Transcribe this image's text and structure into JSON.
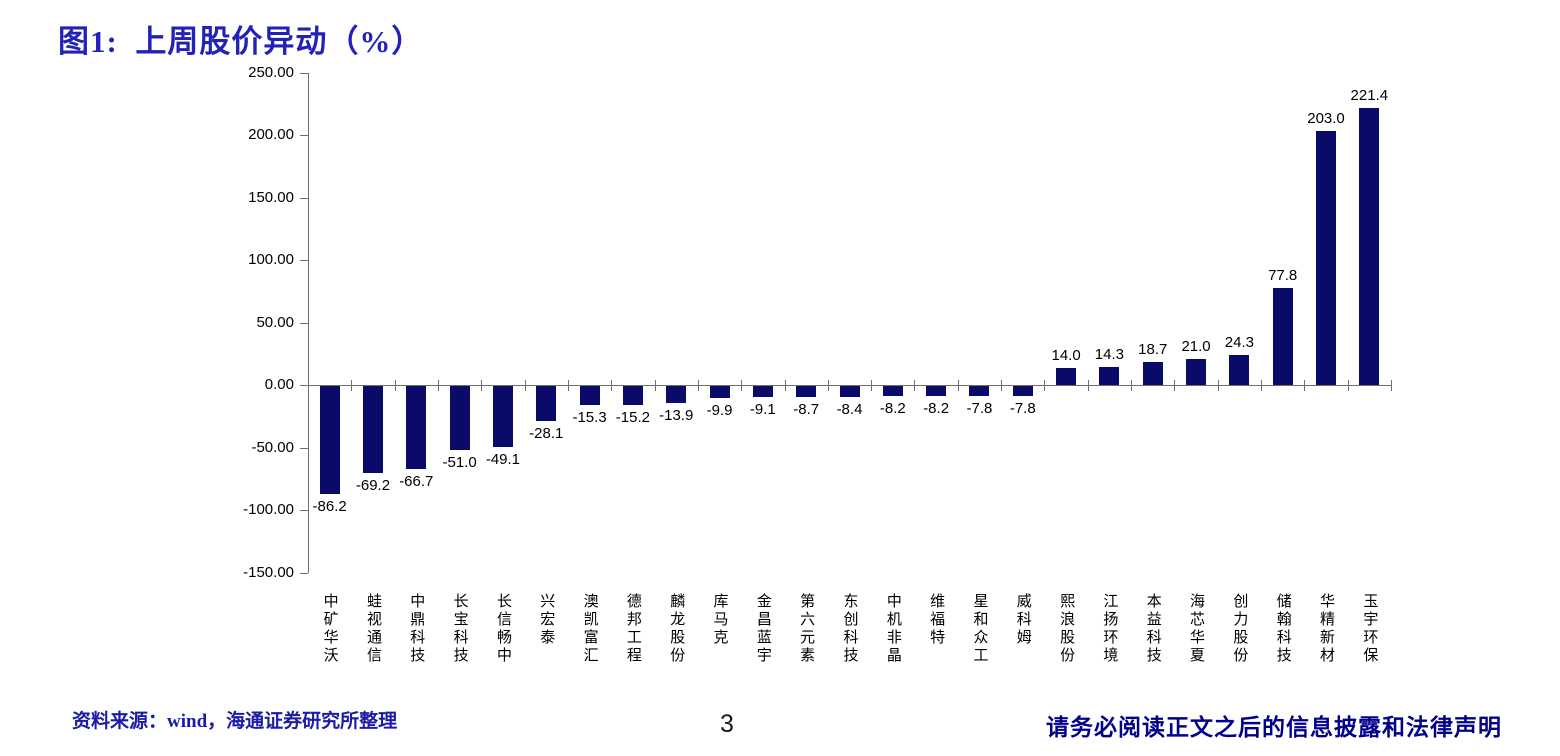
{
  "page": {
    "title": "图1:  上周股价异动（%）",
    "page_number": "3",
    "source_note": "资料来源：wind，海通证券研究所整理",
    "legal_notice": "请务必阅读正文之后的信息披露和法律声明"
  },
  "chart_data": {
    "type": "bar",
    "title": "上周股价异动（%）",
    "categories": [
      "中矿华沃",
      "蛙视通信",
      "中鼎科技",
      "长宝科技",
      "长信畅中",
      "兴宏泰",
      "澳凯富汇",
      "德邦工程",
      "麟龙股份",
      "库马克",
      "金昌蓝宇",
      "第六元素",
      "东创科技",
      "中机非晶",
      "维福特",
      "星和众工",
      "威科姆",
      "熙浪股份",
      "江扬环境",
      "本益科技",
      "海芯华夏",
      "创力股份",
      "储翰科技",
      "华精新材",
      "玉宇环保"
    ],
    "values": [
      -86.2,
      -69.2,
      -66.7,
      -51.0,
      -49.1,
      -28.1,
      -15.3,
      -15.2,
      -13.9,
      -9.9,
      -9.1,
      -8.7,
      -8.4,
      -8.2,
      -8.2,
      -7.8,
      -7.8,
      14.0,
      14.3,
      18.7,
      21.0,
      24.3,
      77.8,
      203.0,
      221.4
    ],
    "value_labels": [
      "-86.2",
      "-69.2",
      "-66.7",
      "-51.0",
      "-49.1",
      "-28.1",
      "-15.3",
      "-15.2",
      "-13.9",
      "-9.9",
      "-9.1",
      "-8.7",
      "-8.4",
      "-8.2",
      "-8.2",
      "-7.8",
      "-7.8",
      "14.0",
      "14.3",
      "18.7",
      "21.0",
      "24.3",
      "77.8",
      "203.0",
      "221.4"
    ],
    "xlabel": "",
    "ylabel": "",
    "ylim": [
      -150,
      250
    ],
    "yticks": [
      250,
      200,
      150,
      100,
      50,
      0,
      -50,
      -100,
      -150
    ],
    "ytick_labels": [
      "250.00",
      "200.00",
      "150.00",
      "100.00",
      "50.00",
      "0.00",
      "-50.00",
      "-100.00",
      "-150.00"
    ],
    "grid": false,
    "legend": "none",
    "bar_color": "#0A0A68",
    "axis_color": "#6E6E6E"
  }
}
